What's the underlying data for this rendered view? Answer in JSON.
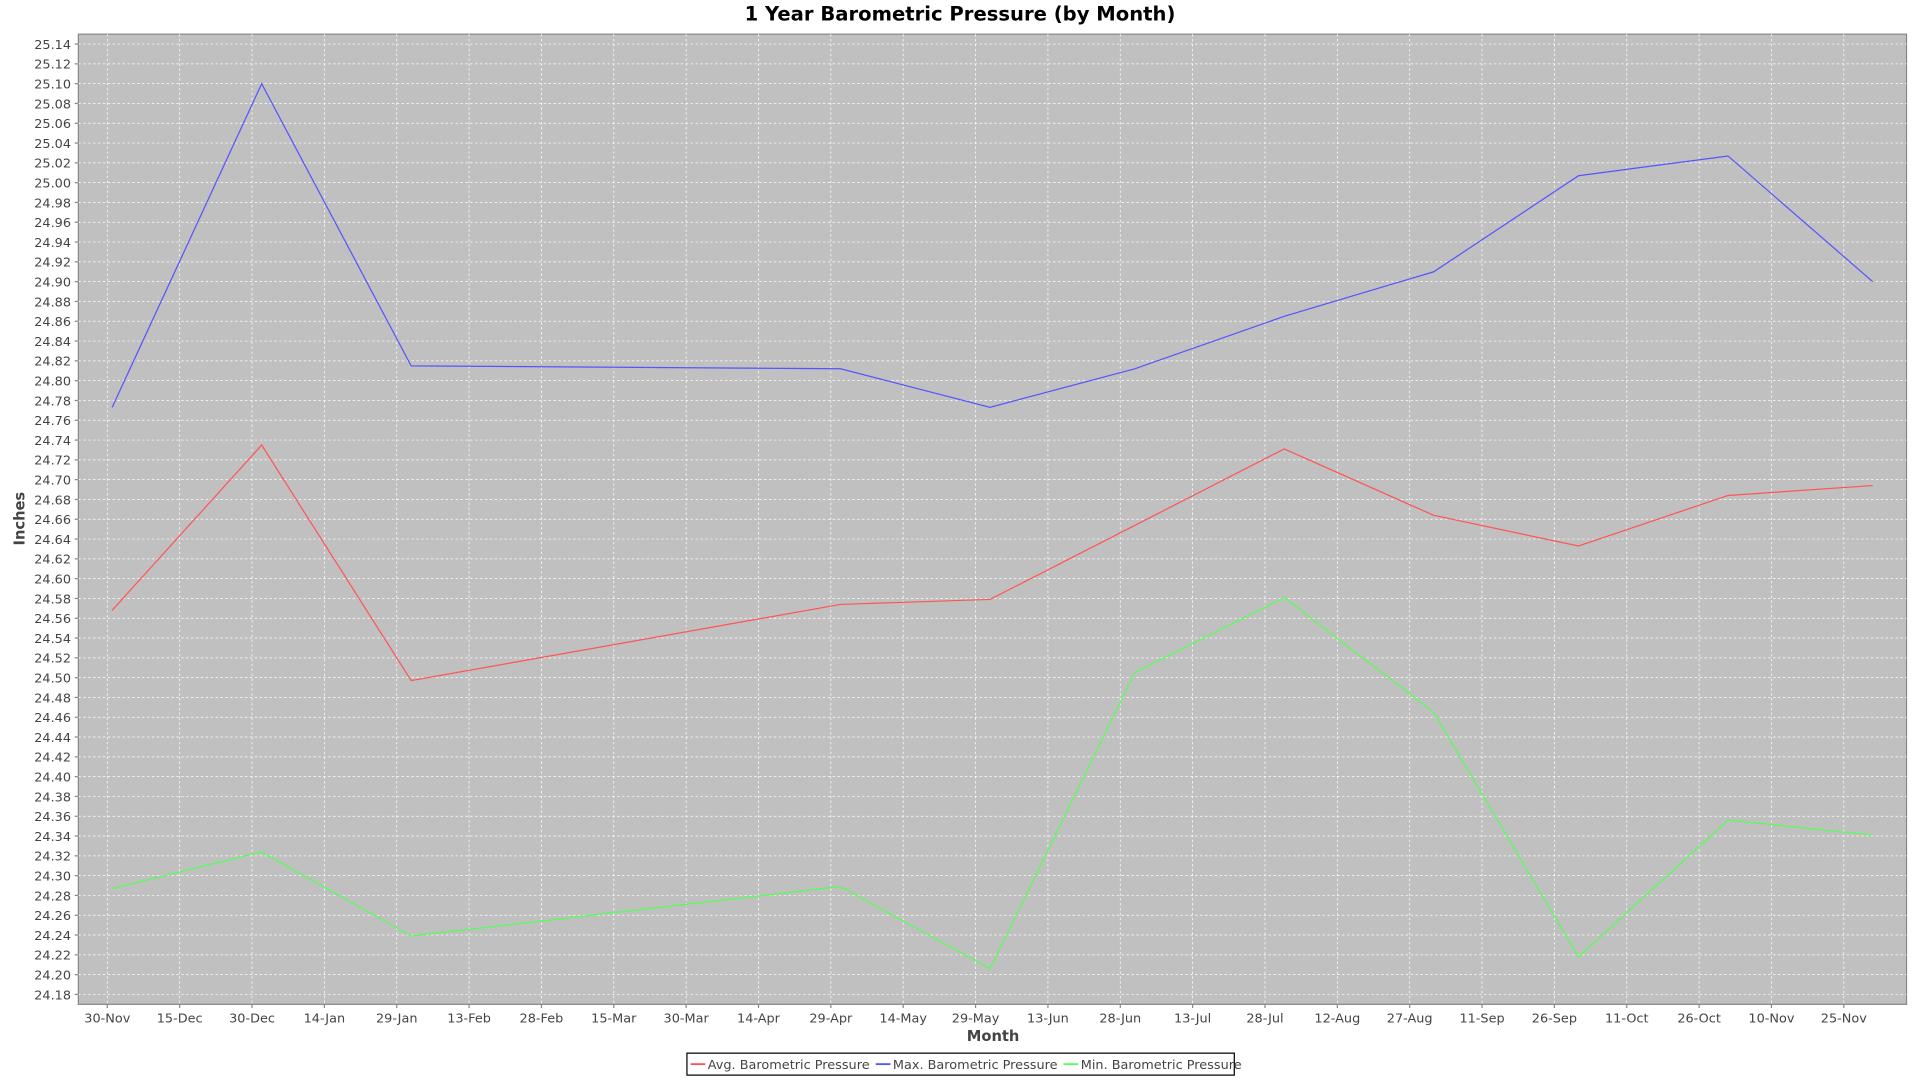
{
  "chart_data": {
    "type": "line",
    "title": "1 Year Barometric Pressure (by Month)",
    "xlabel": "Month",
    "ylabel": "Inches",
    "x_tick_labels": [
      "30-Nov",
      "15-Dec",
      "30-Dec",
      "14-Jan",
      "29-Jan",
      "13-Feb",
      "28-Feb",
      "15-Mar",
      "30-Mar",
      "14-Apr",
      "29-Apr",
      "14-May",
      "29-May",
      "13-Jun",
      "28-Jun",
      "13-Jul",
      "28-Jul",
      "12-Aug",
      "27-Aug",
      "11-Sep",
      "26-Sep",
      "11-Oct",
      "26-Oct",
      "10-Nov",
      "25-Nov"
    ],
    "xlim": [
      "24-Nov",
      "08-Dec"
    ],
    "ylim": [
      24.17,
      25.15
    ],
    "y_tick_step": 0.02,
    "y_ticks_range": [
      24.18,
      25.14
    ],
    "grid": true,
    "plot_background": "#C0C0C0",
    "legend_position": "bottom",
    "series": [
      {
        "name": "Avg. Barometric Pressure",
        "color": "#FF5555",
        "x": [
          "01-Dec",
          "01-Jan",
          "01-Feb",
          "01-May",
          "01-Jun",
          "01-Aug",
          "01-Sep",
          "01-Oct",
          "01-Nov",
          "01-Dec"
        ],
        "values": [
          24.568,
          24.735,
          24.497,
          24.574,
          24.579,
          24.731,
          24.664,
          24.633,
          24.684,
          24.694
        ]
      },
      {
        "name": "Max. Barometric Pressure",
        "color": "#5555FF",
        "x": [
          "01-Dec",
          "01-Jan",
          "01-Feb",
          "01-May",
          "01-Jun",
          "01-Jul",
          "01-Aug",
          "01-Sep",
          "01-Oct",
          "01-Nov",
          "01-Dec"
        ],
        "values": [
          24.773,
          25.1,
          24.815,
          24.812,
          24.773,
          24.812,
          24.865,
          24.91,
          25.007,
          25.027,
          24.9
        ]
      },
      {
        "name": "Min. Barometric Pressure",
        "color": "#55FF55",
        "x": [
          "01-Dec",
          "01-Jan",
          "01-Feb",
          "01-May",
          "01-Jun",
          "01-Jul",
          "01-Aug",
          "01-Sep",
          "01-Oct",
          "01-Nov",
          "01-Dec"
        ],
        "values": [
          24.287,
          24.324,
          24.239,
          24.289,
          24.206,
          24.505,
          24.581,
          24.465,
          24.218,
          24.356,
          24.341
        ]
      }
    ]
  }
}
